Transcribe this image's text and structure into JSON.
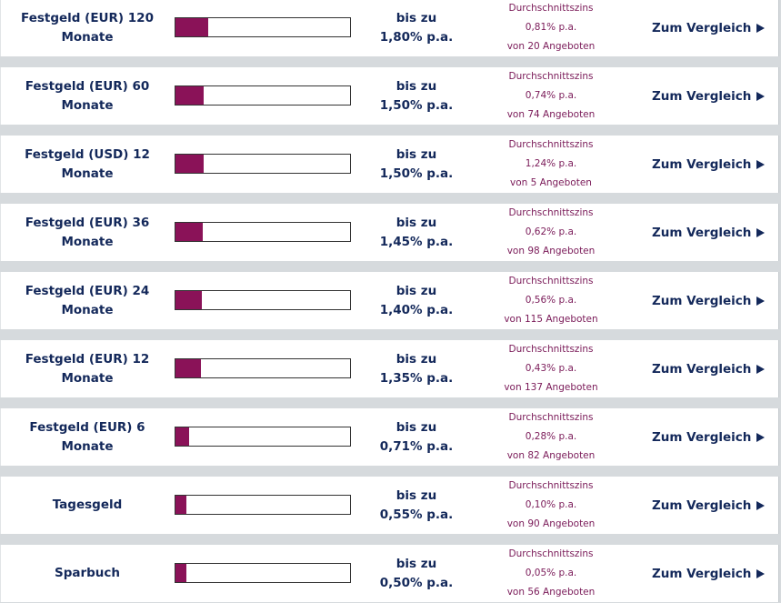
{
  "colors": {
    "text": "#13285a",
    "avg_text": "#7a1a58",
    "bar_fill": "#8a1258",
    "separator": "#d6dadd"
  },
  "rows": [
    {
      "product": [
        "Festgeld (EUR) 120",
        "Monate"
      ],
      "bar_level": 0.19,
      "rate_prefix": "bis zu",
      "rate": "1,80% p.a.",
      "avg_label": "Durchschnittszins",
      "avg_rate": "0,81% p.a.",
      "offers": "von 20 Angeboten",
      "cta": "Zum Vergleich"
    },
    {
      "product": [
        "Festgeld (EUR) 60",
        "Monate"
      ],
      "bar_level": 0.16,
      "rate_prefix": "bis zu",
      "rate": "1,50% p.a.",
      "avg_label": "Durchschnittszins",
      "avg_rate": "0,74% p.a.",
      "offers": "von 74 Angeboten",
      "cta": "Zum Vergleich"
    },
    {
      "product": [
        "Festgeld (USD) 12",
        "Monate"
      ],
      "bar_level": 0.16,
      "rate_prefix": "bis zu",
      "rate": "1,50% p.a.",
      "avg_label": "Durchschnittszins",
      "avg_rate": "1,24% p.a.",
      "offers": "von 5 Angeboten",
      "cta": "Zum Vergleich"
    },
    {
      "product": [
        "Festgeld (EUR) 36",
        "Monate"
      ],
      "bar_level": 0.155,
      "rate_prefix": "bis zu",
      "rate": "1,45% p.a.",
      "avg_label": "Durchschnittszins",
      "avg_rate": "0,62% p.a.",
      "offers": "von 98 Angeboten",
      "cta": "Zum Vergleich"
    },
    {
      "product": [
        "Festgeld (EUR) 24",
        "Monate"
      ],
      "bar_level": 0.15,
      "rate_prefix": "bis zu",
      "rate": "1,40% p.a.",
      "avg_label": "Durchschnittszins",
      "avg_rate": "0,56% p.a.",
      "offers": "von 115 Angeboten",
      "cta": "Zum Vergleich"
    },
    {
      "product": [
        "Festgeld (EUR) 12",
        "Monate"
      ],
      "bar_level": 0.145,
      "rate_prefix": "bis zu",
      "rate": "1,35% p.a.",
      "avg_label": "Durchschnittszins",
      "avg_rate": "0,43% p.a.",
      "offers": "von 137 Angeboten",
      "cta": "Zum Vergleich"
    },
    {
      "product": [
        "Festgeld (EUR) 6",
        "Monate"
      ],
      "bar_level": 0.08,
      "rate_prefix": "bis zu",
      "rate": "0,71% p.a.",
      "avg_label": "Durchschnittszins",
      "avg_rate": "0,28% p.a.",
      "offers": "von 82 Angeboten",
      "cta": "Zum Vergleich"
    },
    {
      "product": [
        "Tagesgeld"
      ],
      "bar_level": 0.065,
      "rate_prefix": "bis zu",
      "rate": "0,55% p.a.",
      "avg_label": "Durchschnittszins",
      "avg_rate": "0,10% p.a.",
      "offers": "von 90 Angeboten",
      "cta": "Zum Vergleich"
    },
    {
      "product": [
        "Sparbuch"
      ],
      "bar_level": 0.06,
      "rate_prefix": "bis zu",
      "rate": "0,50% p.a.",
      "avg_label": "Durchschnittszins",
      "avg_rate": "0,05% p.a.",
      "offers": "von 56 Angeboten",
      "cta": "Zum Vergleich"
    }
  ]
}
